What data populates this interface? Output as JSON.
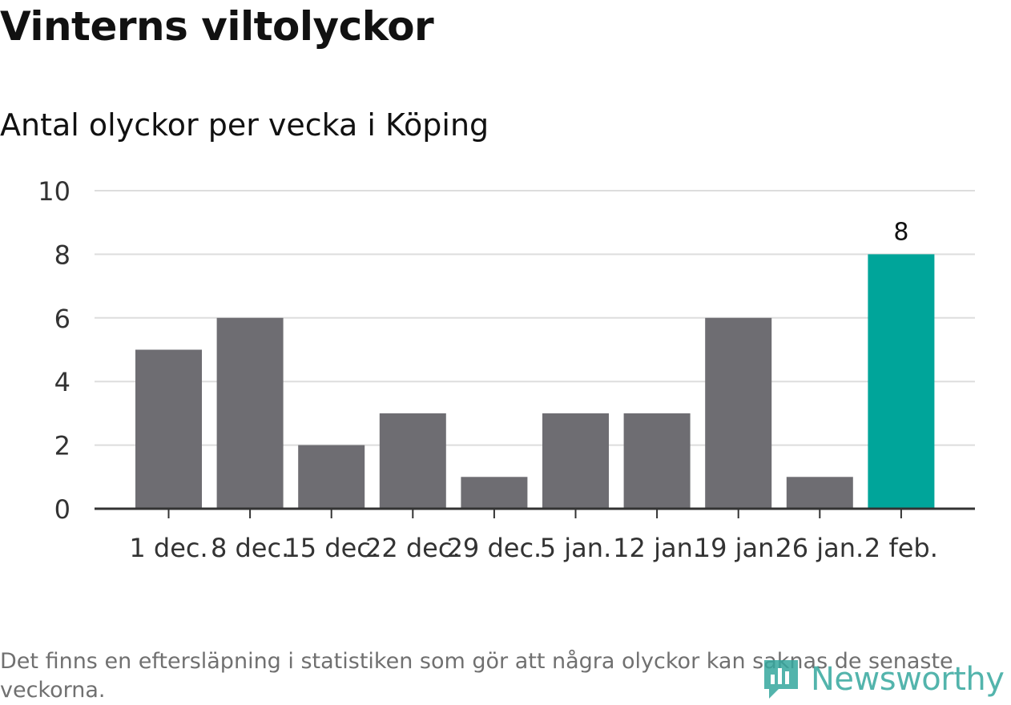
{
  "header": {
    "title": "Vinterns viltolyckor",
    "subtitle": "Antal olyckor per vecka i Köping"
  },
  "chart_data": {
    "type": "bar",
    "title": "Vinterns viltolyckor",
    "subtitle": "Antal olyckor per vecka i Köping",
    "xlabel": "",
    "ylabel": "",
    "categories": [
      "1 dec.",
      "8 dec.",
      "15 dec.",
      "22 dec.",
      "29 dec.",
      "5 jan.",
      "12 jan.",
      "19 jan.",
      "26 jan.",
      "2 feb."
    ],
    "values": [
      5,
      6,
      2,
      3,
      1,
      3,
      3,
      6,
      1,
      8
    ],
    "ylim": [
      0,
      10
    ],
    "yticks": [
      0,
      2,
      4,
      6,
      8,
      10
    ],
    "grid": true,
    "highlight_index": 9,
    "data_labels": [
      {
        "index": 9,
        "text": "8"
      }
    ],
    "colors": {
      "bar": "#6e6d72",
      "highlight": "#00a59a",
      "grid": "#dddddd",
      "axis": "#333333"
    }
  },
  "footer": {
    "note": "Det finns en eftersläpning i statistiken som gör att några olyckor kan saknas de senaste veckorna.",
    "brand": "Newsworthy",
    "brand_icon": "newsworthy-logo-icon",
    "brand_color": "#36a79e"
  }
}
